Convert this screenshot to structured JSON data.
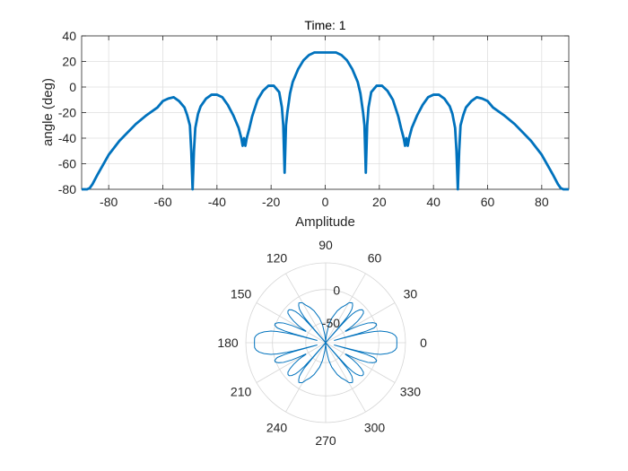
{
  "chart_data": [
    {
      "type": "line",
      "title": "Time: 1",
      "xlabel": "Amplitude",
      "ylabel": "angle (deg)",
      "xlim": [
        -90,
        90
      ],
      "ylim": [
        -80,
        40
      ],
      "xticks": [
        -80,
        -60,
        -40,
        -20,
        0,
        20,
        40,
        60,
        80
      ],
      "yticks": [
        -80,
        -60,
        -40,
        -20,
        0,
        20,
        40
      ],
      "grid": true,
      "line_color": "#0072BD",
      "series": [
        {
          "x": [
            -90,
            -88,
            -87,
            -86,
            -84,
            -80,
            -76,
            -70,
            -66,
            -62,
            -60,
            -58,
            -56,
            -54,
            -52,
            -51,
            -50,
            -49.5,
            -49,
            -48.5,
            -48,
            -47,
            -46,
            -44,
            -42,
            -40,
            -38,
            -36,
            -34,
            -32,
            -31,
            -30.5,
            -30,
            -29.5,
            -29,
            -28,
            -27,
            -25,
            -23,
            -21,
            -19,
            -17,
            -16,
            -15.5,
            -15,
            -14.5,
            -14,
            -13,
            -12,
            -10,
            -8,
            -6,
            -4,
            -2,
            0,
            2,
            4,
            6,
            8,
            10,
            12,
            13,
            14,
            14.5,
            15,
            15.5,
            16,
            17,
            19,
            21,
            23,
            25,
            27,
            28,
            29,
            29.5,
            30,
            30.5,
            31,
            32,
            34,
            36,
            38,
            40,
            42,
            44,
            46,
            47,
            48,
            48.5,
            49,
            49.5,
            50,
            51,
            52,
            54,
            56,
            58,
            60,
            62,
            66,
            70,
            76,
            80,
            84,
            86,
            87,
            88,
            90
          ],
          "y": [
            -80,
            -80,
            -79,
            -76,
            -68,
            -53,
            -42,
            -29,
            -22,
            -16,
            -11,
            -9,
            -8,
            -11,
            -16,
            -22,
            -30,
            -50,
            -80,
            -50,
            -32,
            -21,
            -15,
            -9,
            -6,
            -6,
            -8,
            -14,
            -22,
            -32,
            -40,
            -46,
            -40,
            -46,
            -40,
            -32,
            -23,
            -10,
            -3,
            1,
            1,
            -4,
            -16,
            -30,
            -67,
            -30,
            -20,
            -5,
            4,
            14,
            21,
            25,
            27,
            27,
            27,
            27,
            27,
            25,
            21,
            14,
            4,
            -5,
            -20,
            -30,
            -67,
            -30,
            -16,
            -4,
            1,
            1,
            -3,
            -10,
            -23,
            -32,
            -40,
            -46,
            -40,
            -46,
            -40,
            -32,
            -22,
            -14,
            -8,
            -6,
            -6,
            -9,
            -15,
            -21,
            -32,
            -50,
            -80,
            -50,
            -30,
            -22,
            -16,
            -11,
            -8,
            -9,
            -11,
            -16,
            -22,
            -29,
            -42,
            -53,
            -68,
            -76,
            -79,
            -80,
            -80
          ]
        }
      ]
    },
    {
      "type": "polar",
      "theta_ticks": [
        "0",
        "30",
        "60",
        "90",
        "120",
        "150",
        "180",
        "210",
        "240",
        "270",
        "300",
        "330"
      ],
      "r_ticks": [
        "-50",
        "0"
      ],
      "rlim": [
        -80,
        40
      ],
      "grid": true,
      "line_color": "#0072BD",
      "note_source": "Same pattern as upper panel (angle vs amplitude) plotted in polar form"
    }
  ]
}
